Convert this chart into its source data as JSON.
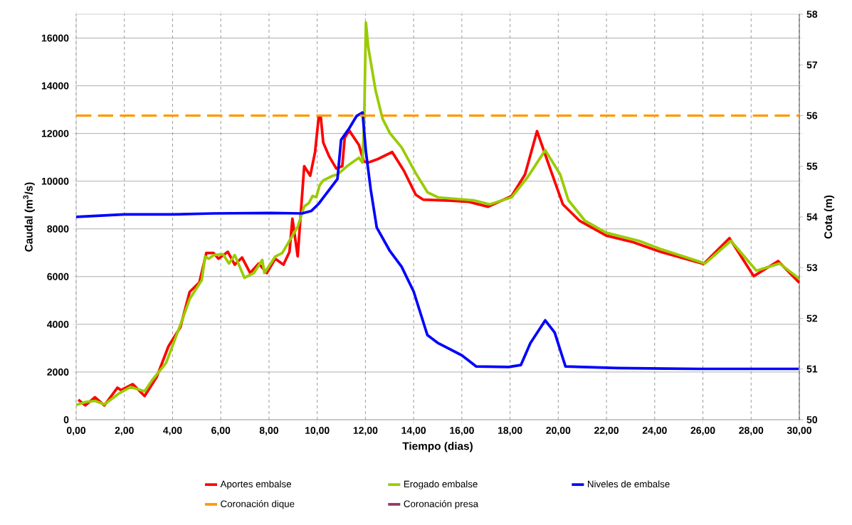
{
  "chart_data": {
    "type": "line",
    "xlabel": "Tiempo (dias)",
    "ylabel": "Caudal (m$^{3}$/s)",
    "y2label": "Cota (m)",
    "xlim": [
      0,
      30
    ],
    "ylim": [
      0,
      17000
    ],
    "y2lim": [
      50,
      58
    ],
    "xticks": [
      {
        "value": 0,
        "label": "0,00"
      },
      {
        "value": 2,
        "label": "2,00"
      },
      {
        "value": 4,
        "label": "4,00"
      },
      {
        "value": 6,
        "label": "6,00"
      },
      {
        "value": 8,
        "label": "8,00"
      },
      {
        "value": 10,
        "label": "10,00"
      },
      {
        "value": 12,
        "label": "12,00"
      },
      {
        "value": 14,
        "label": "14,00"
      },
      {
        "value": 16,
        "label": "16,00"
      },
      {
        "value": 18,
        "label": "18,00"
      },
      {
        "value": 20,
        "label": "20,00"
      },
      {
        "value": 22,
        "label": "22,00"
      },
      {
        "value": 24,
        "label": "24,00"
      },
      {
        "value": 26,
        "label": "26,00"
      },
      {
        "value": 28,
        "label": "28,00"
      },
      {
        "value": 30,
        "label": "30,00"
      }
    ],
    "yticks": [
      0,
      2000,
      4000,
      6000,
      8000,
      10000,
      12000,
      14000,
      16000
    ],
    "y2ticks": [
      50,
      51,
      52,
      53,
      54,
      55,
      56,
      57,
      58
    ],
    "grid": true,
    "legend": "bottom",
    "marker": "none",
    "series": [
      {
        "name": "Aportes embalse",
        "color": "#ff0000",
        "x": [
          0.09,
          0.38,
          0.78,
          1.17,
          1.71,
          1.86,
          2.35,
          2.84,
          3.34,
          3.83,
          4.32,
          4.71,
          5.11,
          5.4,
          5.7,
          5.9,
          6.29,
          6.58,
          6.88,
          7.22,
          7.57,
          7.91,
          8.26,
          8.6,
          8.85,
          8.97,
          9.19,
          9.46,
          9.71,
          9.91,
          10.06,
          10.15,
          10.25,
          10.5,
          10.79,
          11.04,
          11.14,
          11.33,
          11.73,
          11.93,
          12.12,
          12.52,
          13.11,
          13.6,
          14.09,
          14.39,
          15.57,
          16.26,
          17.09,
          18.06,
          18.62,
          19.12,
          19.63,
          20.19,
          20.87,
          21.99,
          23.11,
          24.24,
          26.03,
          27.1,
          28.11,
          29.12,
          30.0
        ],
        "values": [
          840,
          600,
          940,
          600,
          1340,
          1240,
          1490,
          990,
          1790,
          3080,
          3870,
          5360,
          5750,
          6990,
          6990,
          6750,
          7040,
          6500,
          6800,
          6150,
          6550,
          6150,
          6750,
          6500,
          7040,
          8430,
          6850,
          10630,
          10230,
          11220,
          12670,
          12670,
          11620,
          11030,
          10530,
          10630,
          11820,
          12120,
          11520,
          10830,
          10780,
          10930,
          11220,
          10430,
          9430,
          9230,
          9180,
          9140,
          8930,
          9370,
          10280,
          12100,
          10620,
          9030,
          8350,
          7720,
          7440,
          7040,
          6530,
          7610,
          6020,
          6650,
          5740
        ]
      },
      {
        "name": "Erogado embalse",
        "color": "#99cc00",
        "x": [
          0,
          0.38,
          0.78,
          1.17,
          1.76,
          2.25,
          2.84,
          3.14,
          3.73,
          4.32,
          4.71,
          5.21,
          5.35,
          5.5,
          5.7,
          6.09,
          6.34,
          6.58,
          6.98,
          7.37,
          7.72,
          7.81,
          8.26,
          8.55,
          9.19,
          9.46,
          9.66,
          9.81,
          9.96,
          10.1,
          10.25,
          10.65,
          10.84,
          11.24,
          11.73,
          11.88,
          11.95,
          12.02,
          12.12,
          12.42,
          12.71,
          13.01,
          13.5,
          14.09,
          14.58,
          15.02,
          16.48,
          17.16,
          18.06,
          18.73,
          19.46,
          20.08,
          20.42,
          21.1,
          21.99,
          23.34,
          24.24,
          26.09,
          27.16,
          28.22,
          29.18,
          30.0
        ],
        "values": [
          620,
          740,
          790,
          640,
          1090,
          1370,
          1190,
          1640,
          2380,
          3970,
          5060,
          5850,
          6840,
          6750,
          6900,
          6940,
          6550,
          6900,
          5950,
          6150,
          6700,
          6150,
          6840,
          6990,
          8090,
          8940,
          9090,
          9380,
          9330,
          9830,
          10030,
          10230,
          10280,
          10630,
          10980,
          10780,
          12620,
          16650,
          15600,
          13810,
          12620,
          12020,
          11420,
          10330,
          9530,
          9320,
          9200,
          9030,
          9320,
          10170,
          11300,
          10280,
          9200,
          8350,
          7840,
          7500,
          7160,
          6550,
          7500,
          6250,
          6550,
          5910
        ]
      },
      {
        "name": "Niveles de embalse",
        "color": "#0000ff",
        "axis": "y2",
        "x": [
          0,
          2,
          4,
          5.7,
          8.09,
          9.37,
          9.76,
          10.06,
          10.84,
          10.99,
          11.33,
          11.63,
          11.88,
          12.02,
          12.22,
          12.47,
          13.0,
          13.5,
          14.0,
          14.57,
          15.02,
          16.0,
          16.6,
          17.94,
          18.45,
          18.84,
          19.46,
          19.85,
          20.3,
          22.44,
          25.81,
          29.97
        ],
        "values": [
          54.0,
          54.05,
          54.05,
          54.07,
          54.08,
          54.07,
          54.12,
          54.26,
          54.75,
          55.52,
          55.75,
          55.99,
          56.06,
          55.29,
          54.54,
          53.79,
          53.34,
          53.02,
          52.53,
          51.67,
          51.51,
          51.27,
          51.05,
          51.04,
          51.08,
          51.51,
          51.96,
          51.72,
          51.05,
          51.02,
          51.0,
          51.0
        ]
      },
      {
        "name": "Coronación dique",
        "color": "#ff9900",
        "axis": "y2",
        "line_style": "dashed",
        "x": [
          0,
          30
        ],
        "values": [
          56,
          56
        ]
      },
      {
        "name": "Coronación presa",
        "color": "#993366",
        "axis": "y2"
      }
    ]
  }
}
